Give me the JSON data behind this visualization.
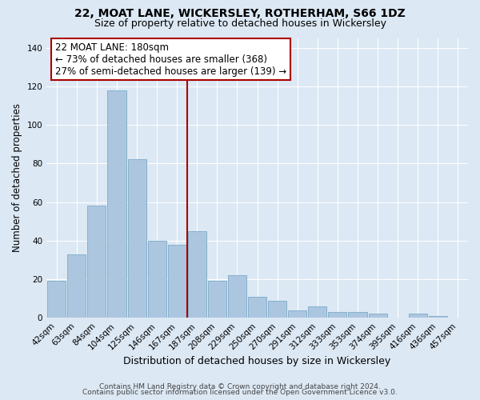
{
  "title": "22, MOAT LANE, WICKERSLEY, ROTHERHAM, S66 1DZ",
  "subtitle": "Size of property relative to detached houses in Wickersley",
  "xlabel": "Distribution of detached houses by size in Wickersley",
  "ylabel": "Number of detached properties",
  "bar_labels": [
    "42sqm",
    "63sqm",
    "84sqm",
    "104sqm",
    "125sqm",
    "146sqm",
    "167sqm",
    "187sqm",
    "208sqm",
    "229sqm",
    "250sqm",
    "270sqm",
    "291sqm",
    "312sqm",
    "333sqm",
    "353sqm",
    "374sqm",
    "395sqm",
    "416sqm",
    "436sqm",
    "457sqm"
  ],
  "bar_values": [
    19,
    33,
    58,
    118,
    82,
    40,
    38,
    45,
    19,
    22,
    11,
    9,
    4,
    6,
    3,
    3,
    2,
    0,
    2,
    1,
    0
  ],
  "bar_color": "#adc6e0",
  "bar_edge_color": "#7aaac8",
  "vline_index": 7,
  "vline_color": "#aa0000",
  "annotation_title": "22 MOAT LANE: 180sqm",
  "annotation_line1": "← 73% of detached houses are smaller (368)",
  "annotation_line2": "27% of semi-detached houses are larger (139) →",
  "annotation_box_color": "#ffffff",
  "annotation_box_edge": "#aa0000",
  "ylim": [
    0,
    145
  ],
  "footer1": "Contains HM Land Registry data © Crown copyright and database right 2024.",
  "footer2": "Contains public sector information licensed under the Open Government Licence v3.0.",
  "background_color": "#dce8f4",
  "plot_bg_color": "#dce8f4",
  "title_fontsize": 10,
  "subtitle_fontsize": 9,
  "footer_fontsize": 6.5
}
